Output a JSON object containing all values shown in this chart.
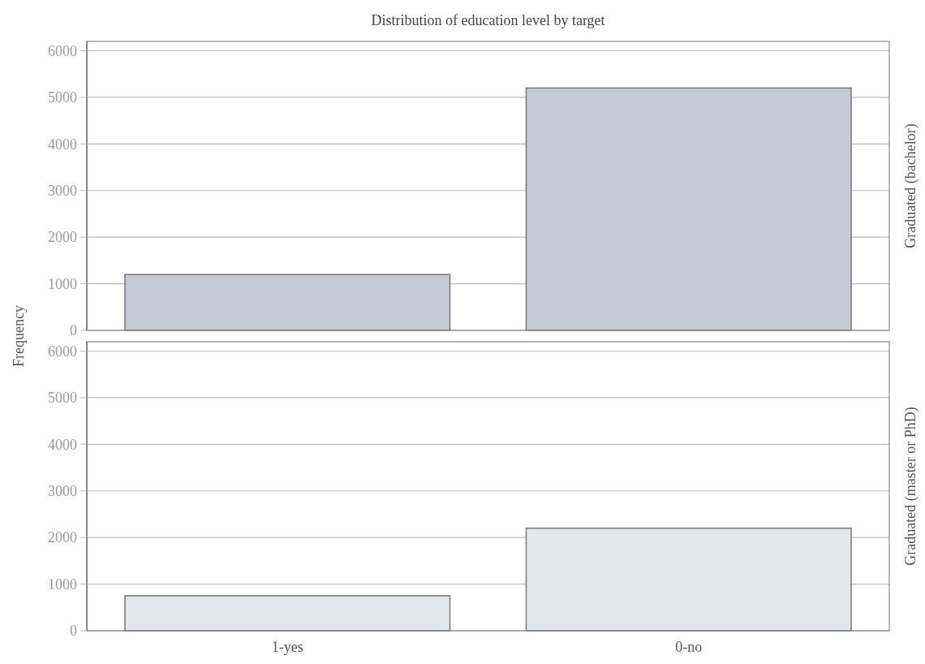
{
  "chart_data": [
    {
      "type": "bar",
      "title": "Distribution of education level by target",
      "ylabel": "Frequency",
      "y2label": "Graduated (bachelor)",
      "categories": [
        "1-yes",
        "0-no"
      ],
      "values": [
        1200,
        5200
      ],
      "color": "#c5cbd5",
      "ylim": [
        0,
        6200
      ],
      "yticks": [
        0,
        1000,
        2000,
        3000,
        4000,
        5000,
        6000
      ],
      "grid": "y",
      "tick_labels": "y"
    },
    {
      "type": "bar",
      "y2label": "Graduated (master or PhD)",
      "categories": [
        "1-yes",
        "0-no"
      ],
      "values": [
        750,
        2200
      ],
      "color": "#e3e6eb",
      "ylim": [
        0,
        6200
      ],
      "yticks": [
        0,
        1000,
        2000,
        3000,
        4000,
        5000,
        6000
      ],
      "grid": "y"
    }
  ]
}
